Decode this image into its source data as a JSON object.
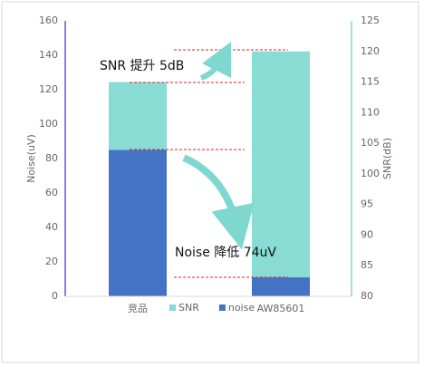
{
  "chart_data": {
    "type": "bar",
    "ylabel": "Noise(uV)",
    "y2label": "SNR(dB)",
    "categories": [
      "竞品",
      "AW85601"
    ],
    "series": [
      {
        "name": "SNR",
        "color": "#88dcd3",
        "values": [
          115,
          120
        ],
        "axis": "y2"
      },
      {
        "name": "noise",
        "color": "#4472c4",
        "values": [
          85,
          11
        ]
      }
    ],
    "ylim": [
      0,
      160
    ],
    "yticks": [
      0,
      20,
      40,
      60,
      80,
      100,
      120,
      140,
      160
    ],
    "y2lim": [
      80,
      125
    ],
    "y2ticks": [
      80,
      85,
      90,
      95,
      100,
      105,
      110,
      115,
      120,
      125
    ],
    "annotations": [
      "SNR 提升 5dB",
      "Noise 降低 74uV"
    ],
    "legend": "bottom"
  }
}
